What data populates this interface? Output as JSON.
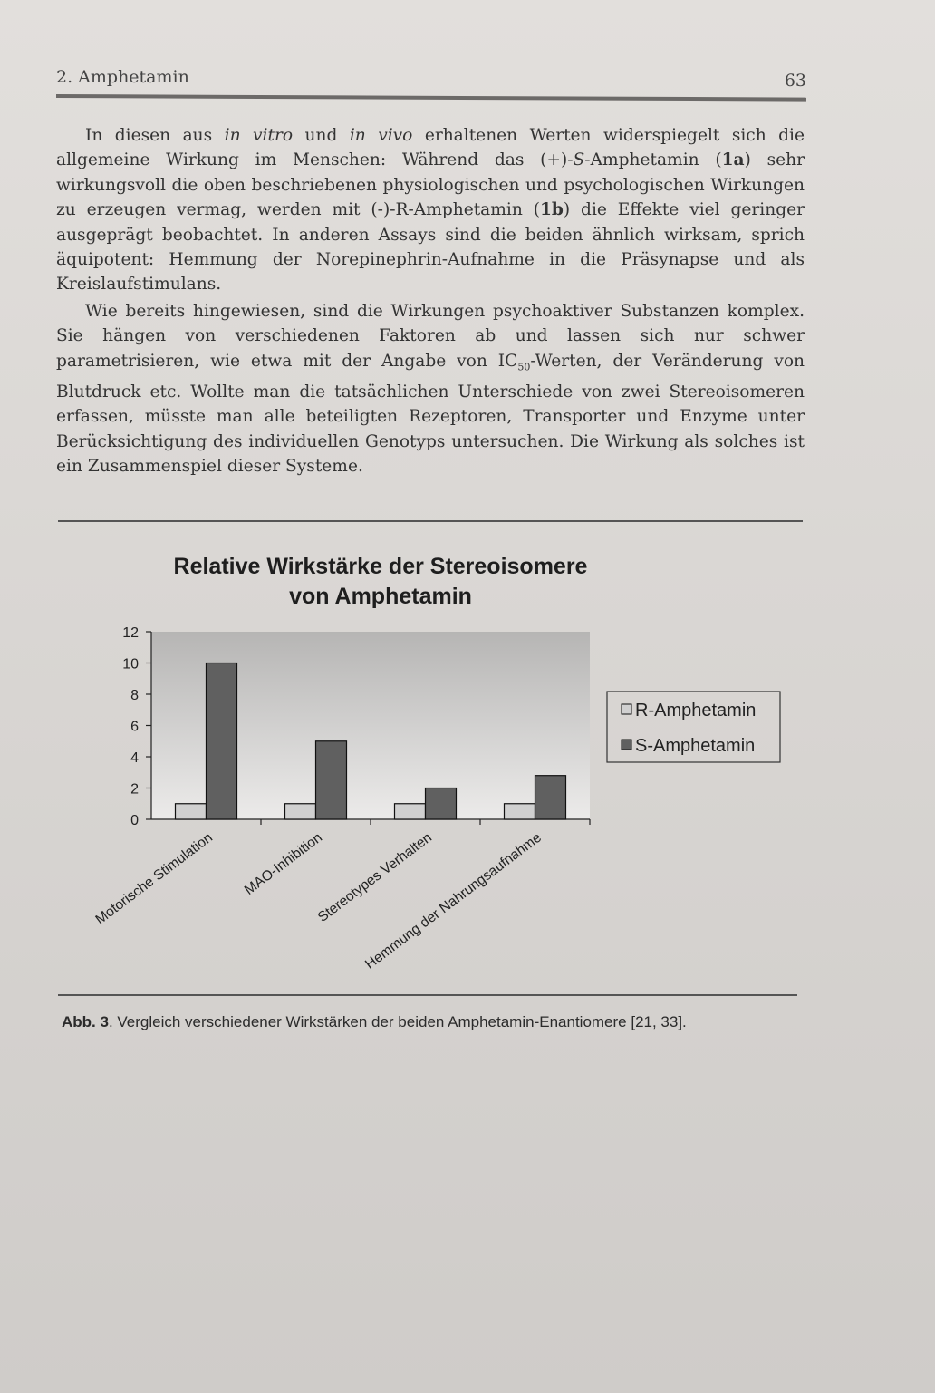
{
  "header": {
    "running_title": "2. Amphetamin",
    "page_number": "63"
  },
  "paragraphs": {
    "p1": {
      "s1": "In diesen aus ",
      "s2": "in vitro",
      "s3": " und ",
      "s4": "in vivo",
      "s5": " erhaltenen Werten widerspiegelt sich die allgemeine Wirkung im Menschen: Während das (+)-",
      "s6": "S",
      "s7": "-Amphetamin (",
      "s8": "1a",
      "s9": ") sehr wirkungsvoll die oben beschriebenen physiologischen und psychologischen Wirkungen zu erzeugen vermag, werden mit (-)-R-Amphetamin (",
      "s10": "1b",
      "s11": ") die Effekte viel geringer ausgeprägt beobachtet. In anderen Assays sind die beiden ähnlich wirksam, sprich äquipotent: Hemmung der Norepinephrin-Aufnahme in die Präsynapse und als Kreislaufstimulans."
    },
    "p2": {
      "s1": "Wie bereits hingewiesen, sind die Wirkungen psychoaktiver Substanzen komplex. Sie hängen von verschiedenen Faktoren ab und lassen sich nur schwer parametrisieren, wie etwa mit der Angabe von IC",
      "sub": "50",
      "s2": "-Werten, der Veränderung von Blutdruck etc. Wollte man die tatsächlichen Unterschiede von zwei Stereoisomeren erfassen, müsste man alle beteiligten Rezeptoren, Transporter und Enzyme unter Berücksichtigung des individuellen Genotyps untersuchen. Die Wirkung als solches ist ein Zusammenspiel dieser Systeme."
    }
  },
  "chart_data": {
    "type": "bar",
    "title": "Relative Wirkstärke der Stereoisomere von Amphetamin",
    "title_lines": [
      "Relative Wirkstärke der Stereoisomere",
      "von Amphetamin"
    ],
    "categories": [
      "Motorische Stimulation",
      "MAO-Inhibition",
      "Stereotypes Verhalten",
      "Hemmung der Nahrungsaufnahme"
    ],
    "series": [
      {
        "name": "R-Amphetamin",
        "values": [
          1,
          1,
          1,
          1
        ],
        "color": "#d0d0d0"
      },
      {
        "name": "S-Amphetamin",
        "values": [
          10,
          5,
          2,
          2.8
        ],
        "color": "#606060"
      }
    ],
    "ylim": [
      0,
      12
    ],
    "yticks": [
      0,
      2,
      4,
      6,
      8,
      10,
      12
    ],
    "xlabel": "",
    "ylabel": "",
    "legend_position": "right",
    "grid": false
  },
  "caption": {
    "label": "Abb. 3",
    "text": ". Vergleich verschiedener Wirkstärken der beiden Amphetamin-Enantiomere [21, 33]."
  }
}
